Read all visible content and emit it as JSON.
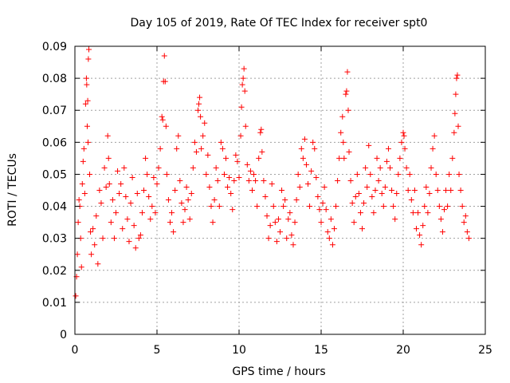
{
  "chart_data": {
    "type": "scatter",
    "title": "Day 105 of 2019, Rate Of TEC Index for receiver spt0",
    "xlabel": "GPS time / hours",
    "ylabel": "ROTI / TECUs",
    "xlim": [
      0,
      25
    ],
    "ylim": [
      0,
      0.09
    ],
    "xticks": [
      0,
      5,
      10,
      15,
      20,
      25
    ],
    "yticks": [
      0,
      0.01,
      0.02,
      0.03,
      0.04,
      0.05,
      0.06,
      0.07,
      0.08,
      0.09
    ],
    "xtick_labels": [
      "0",
      "5",
      "10",
      "15",
      "20",
      "25"
    ],
    "ytick_labels": [
      "0",
      "0.01",
      "0.02",
      "0.03",
      "0.04",
      "0.05",
      "0.06",
      "0.07",
      "0.08",
      "0.09"
    ],
    "grid": true,
    "marker": "+",
    "marker_color": "#ff0000",
    "data_range_x": [
      0,
      24
    ],
    "series": [
      {
        "name": "spt0",
        "points": [
          [
            0.05,
            0.012
          ],
          [
            0.1,
            0.018
          ],
          [
            0.15,
            0.025
          ],
          [
            0.2,
            0.035
          ],
          [
            0.25,
            0.042
          ],
          [
            0.3,
            0.04
          ],
          [
            0.35,
            0.03
          ],
          [
            0.4,
            0.021
          ],
          [
            0.45,
            0.047
          ],
          [
            0.5,
            0.054
          ],
          [
            0.55,
            0.058
          ],
          [
            0.6,
            0.044
          ],
          [
            0.65,
            0.072
          ],
          [
            0.7,
            0.08
          ],
          [
            0.72,
            0.078
          ],
          [
            0.75,
            0.065
          ],
          [
            0.78,
            0.073
          ],
          [
            0.8,
            0.06
          ],
          [
            0.82,
            0.086
          ],
          [
            0.85,
            0.089
          ],
          [
            0.9,
            0.05
          ],
          [
            0.95,
            0.032
          ],
          [
            1.0,
            0.025
          ],
          [
            1.1,
            0.033
          ],
          [
            1.2,
            0.028
          ],
          [
            1.3,
            0.037
          ],
          [
            1.4,
            0.022
          ],
          [
            1.5,
            0.045
          ],
          [
            1.6,
            0.041
          ],
          [
            1.7,
            0.03
          ],
          [
            1.8,
            0.052
          ],
          [
            1.9,
            0.046
          ],
          [
            2.0,
            0.062
          ],
          [
            2.05,
            0.055
          ],
          [
            2.1,
            0.047
          ],
          [
            2.2,
            0.035
          ],
          [
            2.3,
            0.042
          ],
          [
            2.4,
            0.03
          ],
          [
            2.5,
            0.038
          ],
          [
            2.6,
            0.051
          ],
          [
            2.7,
            0.044
          ],
          [
            2.8,
            0.047
          ],
          [
            2.9,
            0.033
          ],
          [
            3.0,
            0.052
          ],
          [
            3.1,
            0.043
          ],
          [
            3.2,
            0.036
          ],
          [
            3.3,
            0.029
          ],
          [
            3.4,
            0.041
          ],
          [
            3.5,
            0.049
          ],
          [
            3.6,
            0.034
          ],
          [
            3.7,
            0.027
          ],
          [
            3.8,
            0.044
          ],
          [
            3.9,
            0.03
          ],
          [
            4.0,
            0.031
          ],
          [
            4.1,
            0.038
          ],
          [
            4.2,
            0.045
          ],
          [
            4.3,
            0.055
          ],
          [
            4.4,
            0.05
          ],
          [
            4.5,
            0.043
          ],
          [
            4.6,
            0.036
          ],
          [
            4.7,
            0.04
          ],
          [
            4.8,
            0.049
          ],
          [
            4.9,
            0.038
          ],
          [
            5.0,
            0.047
          ],
          [
            5.1,
            0.052
          ],
          [
            5.2,
            0.058
          ],
          [
            5.3,
            0.068
          ],
          [
            5.35,
            0.067
          ],
          [
            5.4,
            0.079
          ],
          [
            5.45,
            0.087
          ],
          [
            5.5,
            0.079
          ],
          [
            5.55,
            0.065
          ],
          [
            5.6,
            0.05
          ],
          [
            5.7,
            0.042
          ],
          [
            5.8,
            0.035
          ],
          [
            5.9,
            0.038
          ],
          [
            6.0,
            0.032
          ],
          [
            6.1,
            0.045
          ],
          [
            6.2,
            0.058
          ],
          [
            6.3,
            0.062
          ],
          [
            6.4,
            0.048
          ],
          [
            6.5,
            0.041
          ],
          [
            6.6,
            0.035
          ],
          [
            6.7,
            0.039
          ],
          [
            6.8,
            0.046
          ],
          [
            6.9,
            0.042
          ],
          [
            7.0,
            0.036
          ],
          [
            7.1,
            0.044
          ],
          [
            7.2,
            0.052
          ],
          [
            7.3,
            0.06
          ],
          [
            7.4,
            0.057
          ],
          [
            7.5,
            0.07
          ],
          [
            7.55,
            0.072
          ],
          [
            7.6,
            0.074
          ],
          [
            7.65,
            0.068
          ],
          [
            7.7,
            0.058
          ],
          [
            7.8,
            0.062
          ],
          [
            7.9,
            0.066
          ],
          [
            8.0,
            0.05
          ],
          [
            8.1,
            0.056
          ],
          [
            8.2,
            0.046
          ],
          [
            8.3,
            0.04
          ],
          [
            8.4,
            0.035
          ],
          [
            8.5,
            0.042
          ],
          [
            8.6,
            0.052
          ],
          [
            8.7,
            0.048
          ],
          [
            8.8,
            0.04
          ],
          [
            8.9,
            0.06
          ],
          [
            9.0,
            0.058
          ],
          [
            9.1,
            0.05
          ],
          [
            9.2,
            0.055
          ],
          [
            9.3,
            0.046
          ],
          [
            9.4,
            0.049
          ],
          [
            9.5,
            0.044
          ],
          [
            9.6,
            0.039
          ],
          [
            9.7,
            0.048
          ],
          [
            9.8,
            0.056
          ],
          [
            9.9,
            0.054
          ],
          [
            10.0,
            0.049
          ],
          [
            10.1,
            0.062
          ],
          [
            10.15,
            0.071
          ],
          [
            10.2,
            0.078
          ],
          [
            10.25,
            0.08
          ],
          [
            10.3,
            0.083
          ],
          [
            10.35,
            0.076
          ],
          [
            10.4,
            0.065
          ],
          [
            10.5,
            0.053
          ],
          [
            10.6,
            0.048
          ],
          [
            10.7,
            0.051
          ],
          [
            10.8,
            0.045
          ],
          [
            10.9,
            0.05
          ],
          [
            11.0,
            0.048
          ],
          [
            11.1,
            0.04
          ],
          [
            11.2,
            0.055
          ],
          [
            11.3,
            0.063
          ],
          [
            11.35,
            0.064
          ],
          [
            11.4,
            0.057
          ],
          [
            11.5,
            0.048
          ],
          [
            11.6,
            0.043
          ],
          [
            11.7,
            0.037
          ],
          [
            11.8,
            0.03
          ],
          [
            11.9,
            0.034
          ],
          [
            12.0,
            0.047
          ],
          [
            12.1,
            0.04
          ],
          [
            12.2,
            0.035
          ],
          [
            12.3,
            0.029
          ],
          [
            12.4,
            0.036
          ],
          [
            12.5,
            0.032
          ],
          [
            12.6,
            0.045
          ],
          [
            12.7,
            0.04
          ],
          [
            12.8,
            0.042
          ],
          [
            12.9,
            0.03
          ],
          [
            13.0,
            0.036
          ],
          [
            13.1,
            0.038
          ],
          [
            13.2,
            0.031
          ],
          [
            13.3,
            0.028
          ],
          [
            13.4,
            0.035
          ],
          [
            13.5,
            0.042
          ],
          [
            13.6,
            0.05
          ],
          [
            13.7,
            0.046
          ],
          [
            13.8,
            0.058
          ],
          [
            13.9,
            0.055
          ],
          [
            14.0,
            0.061
          ],
          [
            14.1,
            0.053
          ],
          [
            14.2,
            0.047
          ],
          [
            14.3,
            0.04
          ],
          [
            14.4,
            0.051
          ],
          [
            14.5,
            0.06
          ],
          [
            14.6,
            0.058
          ],
          [
            14.7,
            0.049
          ],
          [
            14.8,
            0.043
          ],
          [
            14.9,
            0.039
          ],
          [
            15.0,
            0.035
          ],
          [
            15.1,
            0.041
          ],
          [
            15.2,
            0.046
          ],
          [
            15.3,
            0.039
          ],
          [
            15.4,
            0.032
          ],
          [
            15.5,
            0.03
          ],
          [
            15.6,
            0.036
          ],
          [
            15.7,
            0.028
          ],
          [
            15.8,
            0.033
          ],
          [
            15.9,
            0.04
          ],
          [
            16.0,
            0.048
          ],
          [
            16.1,
            0.055
          ],
          [
            16.2,
            0.063
          ],
          [
            16.3,
            0.068
          ],
          [
            16.35,
            0.06
          ],
          [
            16.4,
            0.055
          ],
          [
            16.5,
            0.075
          ],
          [
            16.55,
            0.076
          ],
          [
            16.6,
            0.082
          ],
          [
            16.65,
            0.07
          ],
          [
            16.7,
            0.057
          ],
          [
            16.8,
            0.048
          ],
          [
            16.9,
            0.041
          ],
          [
            17.0,
            0.035
          ],
          [
            17.1,
            0.043
          ],
          [
            17.2,
            0.05
          ],
          [
            17.3,
            0.044
          ],
          [
            17.4,
            0.038
          ],
          [
            17.5,
            0.033
          ],
          [
            17.6,
            0.041
          ],
          [
            17.7,
            0.052
          ],
          [
            17.8,
            0.046
          ],
          [
            17.9,
            0.059
          ],
          [
            18.0,
            0.05
          ],
          [
            18.1,
            0.043
          ],
          [
            18.2,
            0.038
          ],
          [
            18.3,
            0.045
          ],
          [
            18.4,
            0.055
          ],
          [
            18.5,
            0.048
          ],
          [
            18.6,
            0.052
          ],
          [
            18.7,
            0.044
          ],
          [
            18.8,
            0.04
          ],
          [
            18.9,
            0.046
          ],
          [
            19.0,
            0.054
          ],
          [
            19.1,
            0.058
          ],
          [
            19.2,
            0.052
          ],
          [
            19.3,
            0.045
          ],
          [
            19.4,
            0.04
          ],
          [
            19.5,
            0.036
          ],
          [
            19.6,
            0.044
          ],
          [
            19.7,
            0.05
          ],
          [
            19.8,
            0.055
          ],
          [
            19.9,
            0.06
          ],
          [
            20.0,
            0.063
          ],
          [
            20.05,
            0.062
          ],
          [
            20.1,
            0.058
          ],
          [
            20.2,
            0.052
          ],
          [
            20.3,
            0.045
          ],
          [
            20.4,
            0.05
          ],
          [
            20.5,
            0.042
          ],
          [
            20.6,
            0.038
          ],
          [
            20.7,
            0.045
          ],
          [
            20.8,
            0.033
          ],
          [
            20.9,
            0.038
          ],
          [
            21.0,
            0.031
          ],
          [
            21.1,
            0.028
          ],
          [
            21.2,
            0.034
          ],
          [
            21.3,
            0.04
          ],
          [
            21.4,
            0.046
          ],
          [
            21.5,
            0.038
          ],
          [
            21.6,
            0.044
          ],
          [
            21.7,
            0.052
          ],
          [
            21.8,
            0.058
          ],
          [
            21.9,
            0.062
          ],
          [
            22.0,
            0.05
          ],
          [
            22.1,
            0.045
          ],
          [
            22.2,
            0.04
          ],
          [
            22.3,
            0.036
          ],
          [
            22.4,
            0.032
          ],
          [
            22.5,
            0.039
          ],
          [
            22.6,
            0.045
          ],
          [
            22.7,
            0.04
          ],
          [
            22.8,
            0.05
          ],
          [
            22.9,
            0.045
          ],
          [
            23.0,
            0.055
          ],
          [
            23.1,
            0.063
          ],
          [
            23.15,
            0.069
          ],
          [
            23.2,
            0.075
          ],
          [
            23.25,
            0.08
          ],
          [
            23.3,
            0.081
          ],
          [
            23.35,
            0.065
          ],
          [
            23.4,
            0.05
          ],
          [
            23.5,
            0.045
          ],
          [
            23.6,
            0.04
          ],
          [
            23.7,
            0.035
          ],
          [
            23.8,
            0.037
          ],
          [
            23.9,
            0.032
          ],
          [
            24.0,
            0.03
          ]
        ]
      }
    ]
  }
}
